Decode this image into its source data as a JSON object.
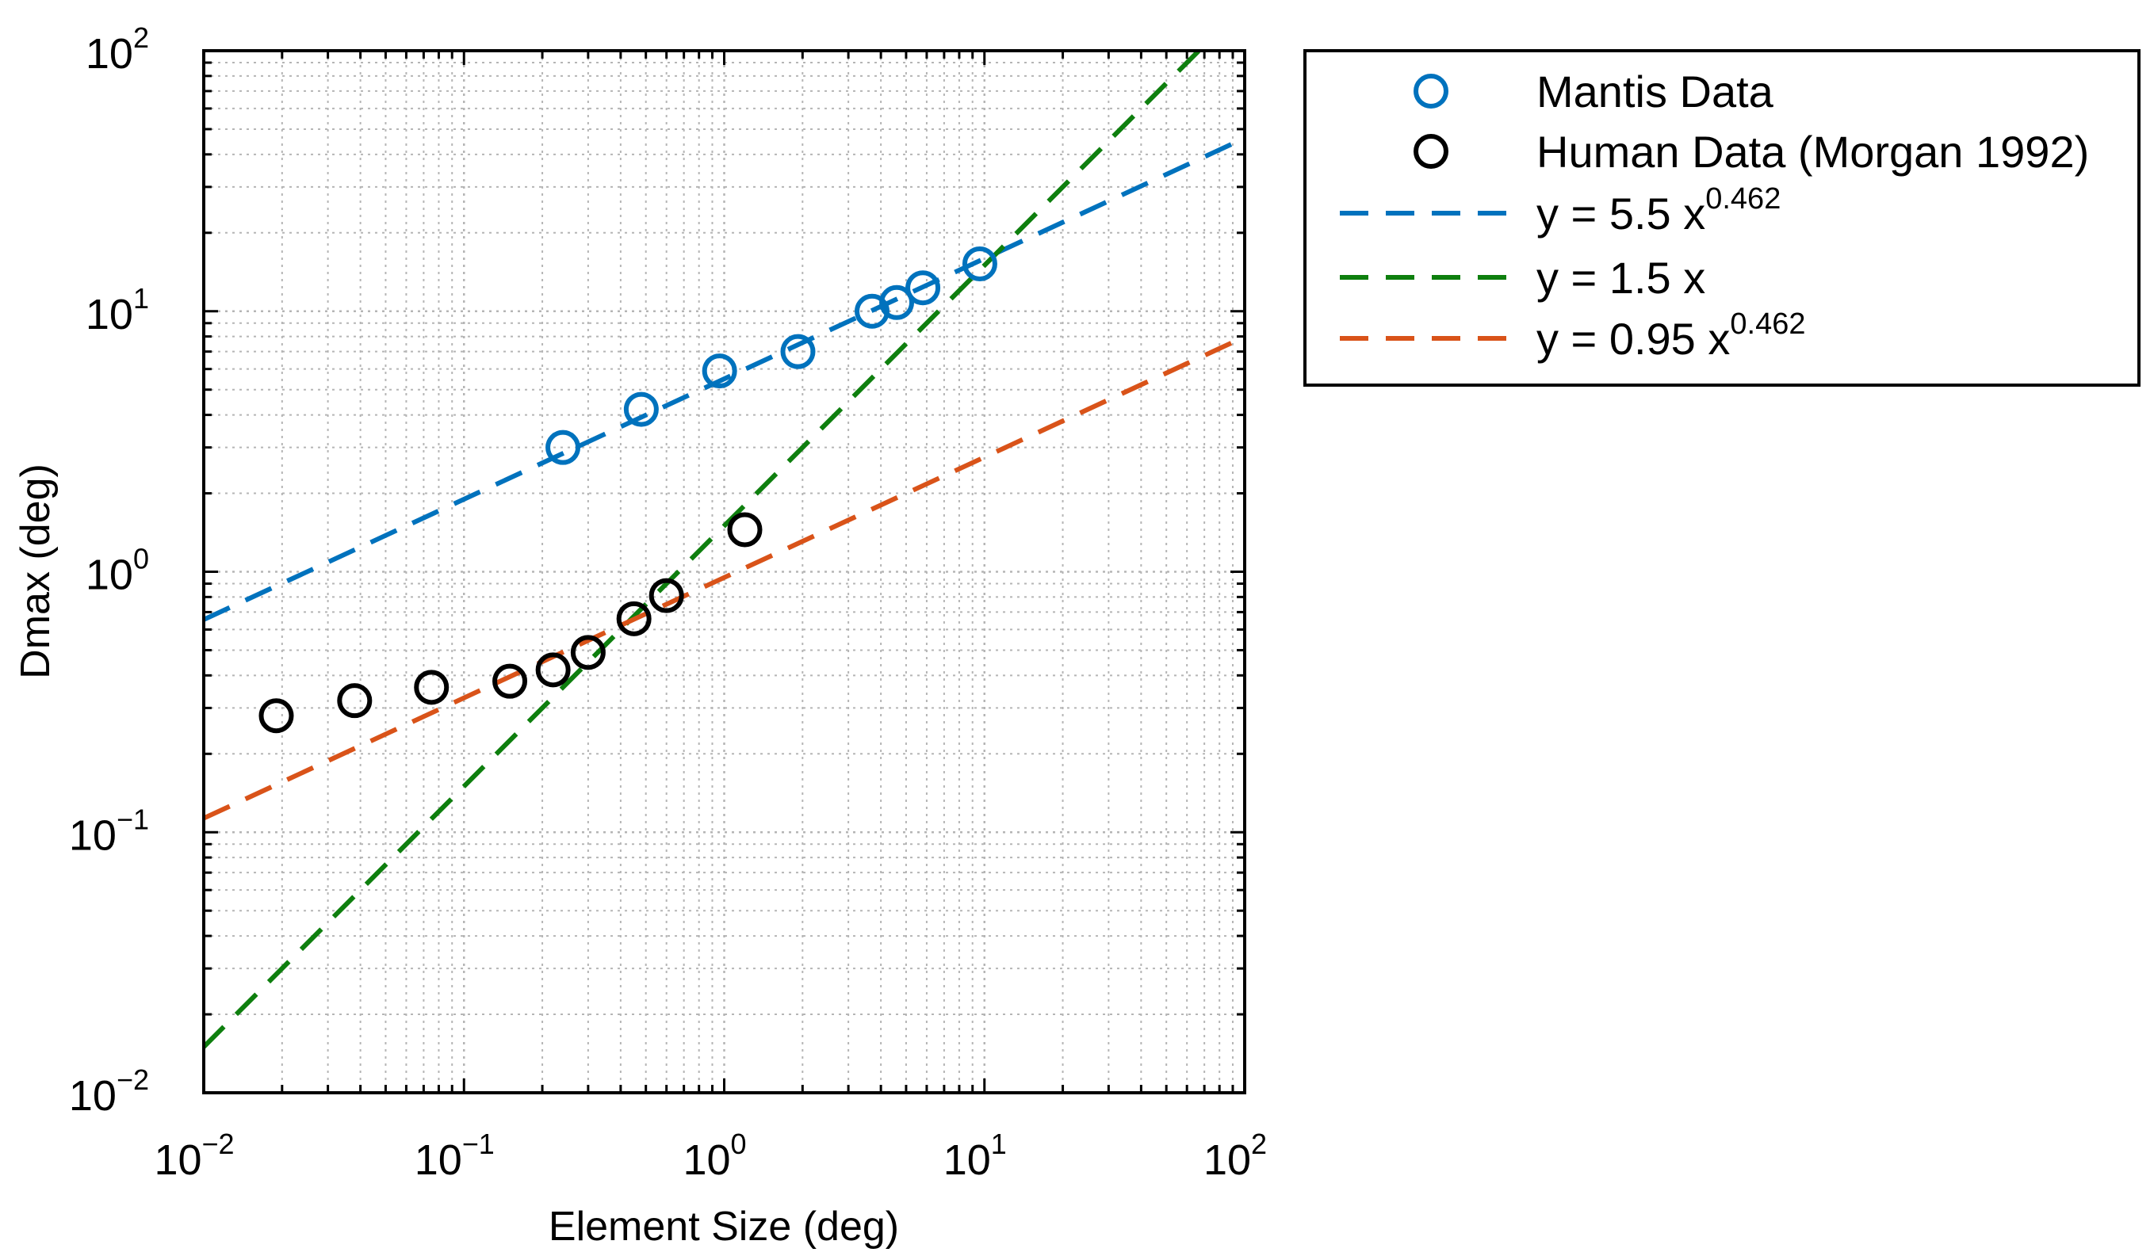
{
  "chart_data": {
    "type": "scatter",
    "xscale": "log",
    "yscale": "log",
    "xlim": [
      0.01,
      100
    ],
    "ylim": [
      0.01,
      100
    ],
    "xlabel": "Element Size (deg)",
    "ylabel": "Dmax (deg)",
    "grid": true,
    "legend_position": "outside-right-top",
    "x_ticks": [
      {
        "value": 0.01,
        "base": "10",
        "exp": "−2"
      },
      {
        "value": 0.1,
        "base": "10",
        "exp": "−1"
      },
      {
        "value": 1,
        "base": "10",
        "exp": "0"
      },
      {
        "value": 10,
        "base": "10",
        "exp": "1"
      },
      {
        "value": 100,
        "base": "10",
        "exp": "2"
      }
    ],
    "y_ticks": [
      {
        "value": 0.01,
        "base": "10",
        "exp": "−2"
      },
      {
        "value": 0.1,
        "base": "10",
        "exp": "−1"
      },
      {
        "value": 1,
        "base": "10",
        "exp": "0"
      },
      {
        "value": 10,
        "base": "10",
        "exp": "1"
      },
      {
        "value": 100,
        "base": "10",
        "exp": "2"
      }
    ],
    "series": [
      {
        "name": "Mantis Data",
        "kind": "markers",
        "color": "#0072BD",
        "points": [
          [
            0.24,
            3.0
          ],
          [
            0.48,
            4.2
          ],
          [
            0.96,
            5.9
          ],
          [
            1.92,
            7.0
          ],
          [
            3.7,
            10.0
          ],
          [
            4.6,
            10.8
          ],
          [
            5.8,
            12.3
          ],
          [
            9.6,
            15.2
          ]
        ]
      },
      {
        "name": "Human Data (Morgan 1992)",
        "kind": "markers",
        "color": "#000000",
        "points": [
          [
            0.019,
            0.28
          ],
          [
            0.038,
            0.32
          ],
          [
            0.075,
            0.36
          ],
          [
            0.15,
            0.38
          ],
          [
            0.22,
            0.42
          ],
          [
            0.3,
            0.49
          ],
          [
            0.45,
            0.66
          ],
          [
            0.6,
            0.81
          ],
          [
            1.2,
            1.45
          ]
        ]
      },
      {
        "name": "y = 5.5 x",
        "exponent_label": "0.462",
        "kind": "dashed-line",
        "color": "#0072BD",
        "coef": 5.5,
        "power": 0.462
      },
      {
        "name": "y = 1.5 x",
        "kind": "dashed-line",
        "color": "#0E7F0E",
        "coef": 1.5,
        "power": 1.0
      },
      {
        "name": "y = 0.95 x",
        "exponent_label": "0.462",
        "kind": "dashed-line",
        "color": "#D95319",
        "coef": 0.95,
        "power": 0.462
      }
    ]
  }
}
